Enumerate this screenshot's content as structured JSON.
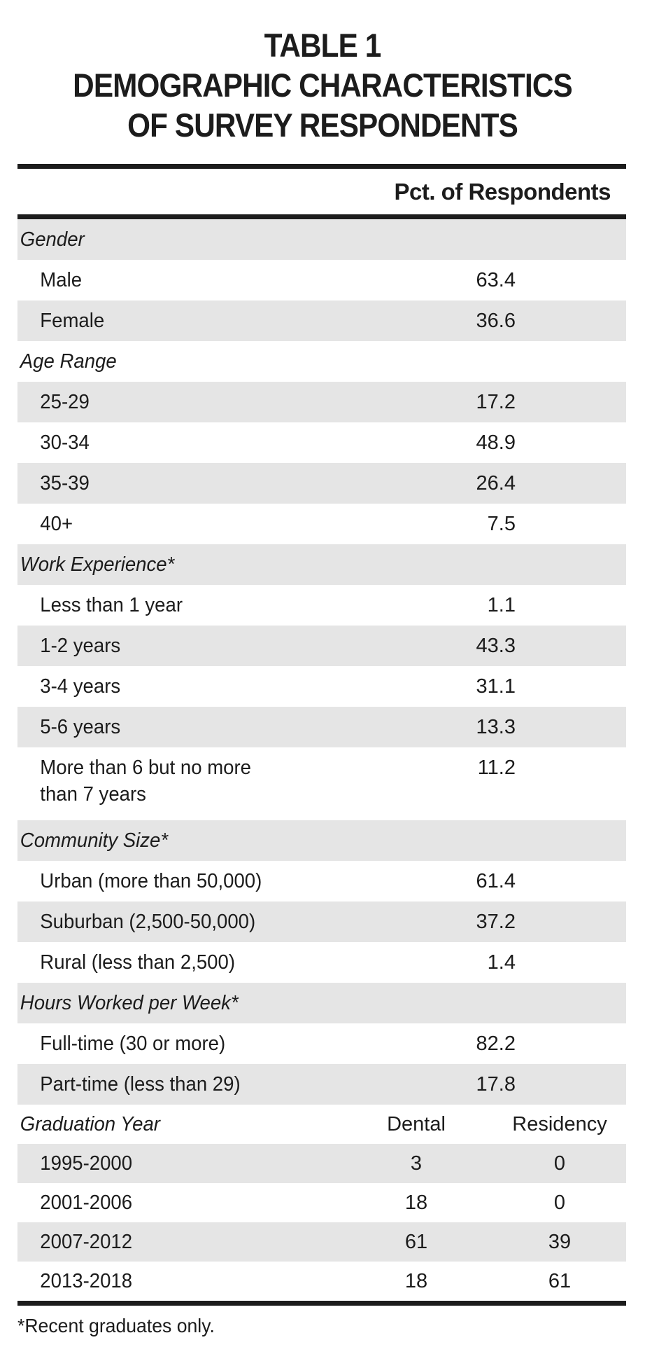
{
  "title": {
    "line1": "TABLE 1",
    "line2": "DEMOGRAPHIC CHARACTERISTICS",
    "line3": "OF SURVEY RESPONDENTS"
  },
  "header": {
    "value_col_label": "Pct. of Respondents"
  },
  "colors": {
    "ink": "#1c1c1c",
    "row_shade": "#e5e5e5",
    "rule": "#1c1c1c",
    "page_bg": "#ffffff"
  },
  "rows": [
    {
      "kind": "section",
      "label": "Gender"
    },
    {
      "kind": "item",
      "label": "Male",
      "value": "63.4"
    },
    {
      "kind": "item",
      "label": "Female",
      "value": "36.6"
    },
    {
      "kind": "section",
      "label": "Age Range"
    },
    {
      "kind": "item",
      "label": "25-29",
      "value": "17.2"
    },
    {
      "kind": "item",
      "label": "30-34",
      "value": "48.9"
    },
    {
      "kind": "item",
      "label": "35-39",
      "value": "26.4"
    },
    {
      "kind": "item",
      "label": "40+",
      "value": "7.5"
    },
    {
      "kind": "section",
      "label": "Work Experience*"
    },
    {
      "kind": "item",
      "label": "Less than 1 year",
      "value": "1.1"
    },
    {
      "kind": "item",
      "label": "1-2 years",
      "value": "43.3"
    },
    {
      "kind": "item",
      "label": "3-4 years",
      "value": "31.1"
    },
    {
      "kind": "item",
      "label": "5-6 years",
      "value": "13.3"
    },
    {
      "kind": "item",
      "label": "More than 6 but no more\nthan 7 years",
      "value": "11.2"
    },
    {
      "kind": "section",
      "label": "Community Size*"
    },
    {
      "kind": "item",
      "label": "Urban (more than 50,000)",
      "value": "61.4"
    },
    {
      "kind": "item",
      "label": "Suburban (2,500-50,000)",
      "value": "37.2"
    },
    {
      "kind": "item",
      "label": "Rural (less than 2,500)",
      "value": "1.4"
    },
    {
      "kind": "section",
      "label": "Hours Worked per Week*"
    },
    {
      "kind": "item",
      "label": "Full-time (30 or more)",
      "value": "82.2"
    },
    {
      "kind": "item",
      "label": "Part-time (less than 29)",
      "value": "17.8"
    },
    {
      "kind": "grad-header",
      "label": "Graduation Year",
      "col1": "Dental",
      "col2": "Residency"
    },
    {
      "kind": "grad-item",
      "label": "1995-2000",
      "dental": "3",
      "residency": "0"
    },
    {
      "kind": "grad-item",
      "label": "2001-2006",
      "dental": "18",
      "residency": "0"
    },
    {
      "kind": "grad-item",
      "label": "2007-2012",
      "dental": "61",
      "residency": "39"
    },
    {
      "kind": "grad-item",
      "label": "2013-2018",
      "dental": "18",
      "residency": "61"
    }
  ],
  "footnote": "*Recent graduates only."
}
